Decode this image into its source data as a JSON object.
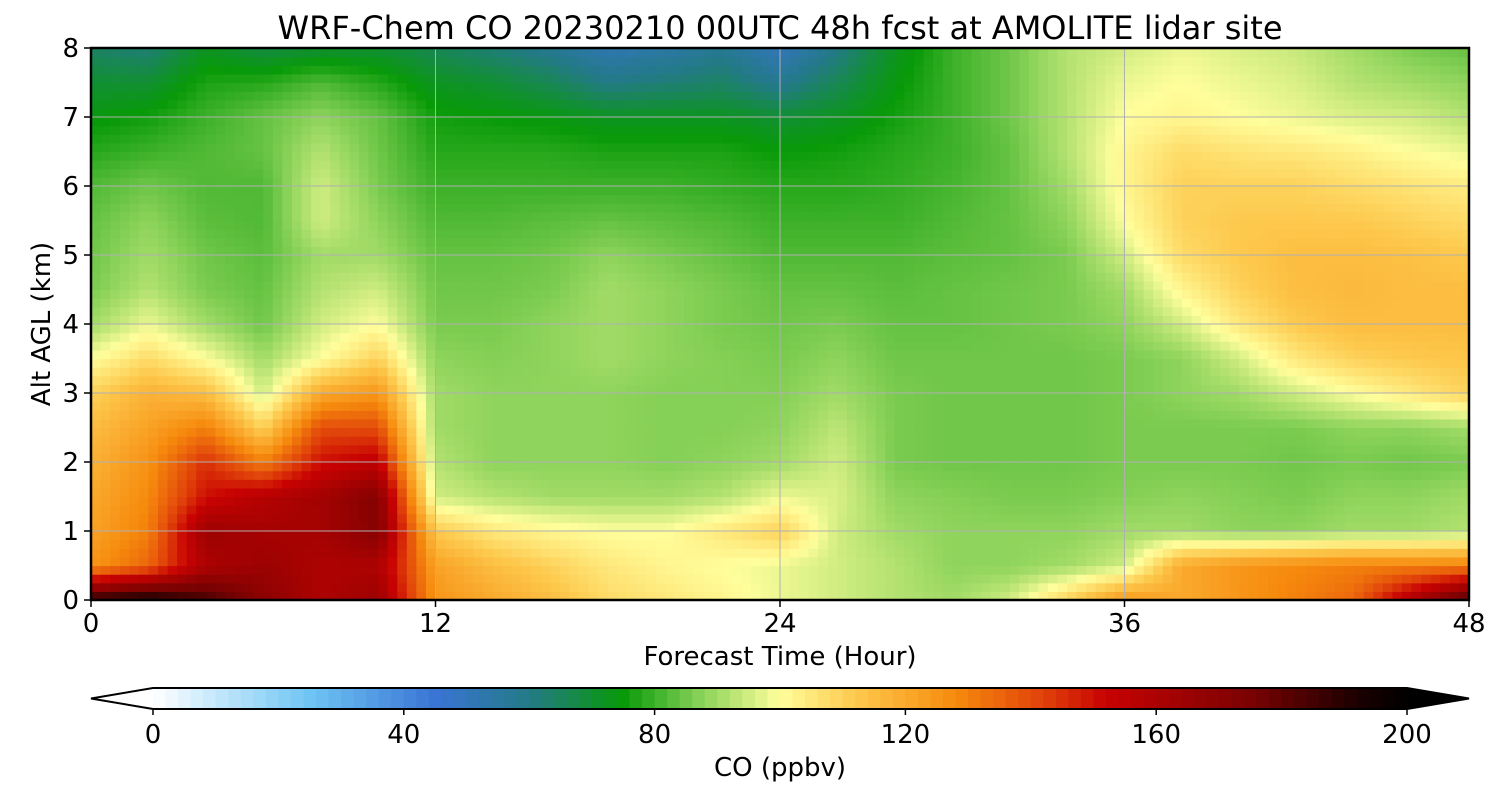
{
  "chart_data": {
    "type": "heatmap",
    "title": "WRF-Chem CO  20230210 00UTC 48h fcst at AMOLITE lidar site",
    "xlabel": "Forecast Time (Hour)",
    "ylabel": "Alt AGL (km)",
    "xlim": [
      0,
      48
    ],
    "ylim": [
      0,
      8
    ],
    "x_ticks": [
      "0",
      "12",
      "24",
      "36",
      "48"
    ],
    "y_ticks": [
      "0",
      "1",
      "2",
      "3",
      "4",
      "5",
      "6",
      "7",
      "8"
    ],
    "grid": true,
    "x": [
      0,
      2,
      4,
      6,
      8,
      10,
      12,
      14,
      16,
      18,
      20,
      22,
      24,
      26,
      28,
      30,
      32,
      34,
      36,
      38,
      40,
      42,
      44,
      46,
      48
    ],
    "y": [
      0,
      0.5,
      1,
      1.5,
      2,
      2.5,
      3,
      3.5,
      4,
      4.5,
      5,
      5.5,
      6,
      6.5,
      7,
      7.5,
      8
    ],
    "z": [
      [
        190,
        195,
        185,
        170,
        160,
        165,
        125,
        120,
        115,
        108,
        105,
        102,
        98,
        95,
        92,
        90,
        95,
        110,
        125,
        120,
        125,
        130,
        135,
        160,
        185
      ],
      [
        125,
        135,
        160,
        165,
        160,
        160,
        122,
        115,
        110,
        105,
        102,
        100,
        98,
        95,
        92,
        88,
        88,
        90,
        95,
        120,
        125,
        128,
        130,
        130,
        130
      ],
      [
        122,
        130,
        165,
        162,
        162,
        172,
        112,
        105,
        102,
        100,
        100,
        105,
        110,
        95,
        90,
        88,
        88,
        88,
        90,
        90,
        88,
        88,
        90,
        90,
        92
      ],
      [
        120,
        128,
        150,
        158,
        163,
        172,
        95,
        92,
        90,
        90,
        90,
        92,
        98,
        96,
        88,
        87,
        86,
        86,
        87,
        88,
        87,
        86,
        88,
        88,
        90
      ],
      [
        118,
        126,
        145,
        130,
        150,
        155,
        92,
        88,
        88,
        88,
        87,
        88,
        90,
        95,
        86,
        85,
        85,
        85,
        86,
        86,
        86,
        85,
        86,
        85,
        86
      ],
      [
        115,
        122,
        130,
        110,
        140,
        140,
        90,
        88,
        88,
        88,
        87,
        87,
        88,
        93,
        86,
        85,
        85,
        85,
        86,
        86,
        86,
        86,
        88,
        88,
        90
      ],
      [
        110,
        118,
        115,
        95,
        120,
        125,
        90,
        88,
        88,
        88,
        87,
        87,
        87,
        90,
        86,
        85,
        85,
        85,
        86,
        88,
        90,
        95,
        100,
        105,
        110
      ],
      [
        100,
        108,
        100,
        90,
        100,
        110,
        88,
        87,
        88,
        90,
        88,
        87,
        86,
        88,
        85,
        85,
        85,
        85,
        86,
        88,
        95,
        105,
        110,
        112,
        113
      ],
      [
        90,
        98,
        90,
        85,
        95,
        100,
        86,
        86,
        88,
        90,
        88,
        86,
        85,
        86,
        84,
        84,
        85,
        86,
        88,
        95,
        105,
        112,
        115,
        115,
        115
      ],
      [
        86,
        92,
        86,
        84,
        92,
        95,
        85,
        85,
        86,
        90,
        88,
        86,
        84,
        84,
        83,
        84,
        85,
        86,
        90,
        102,
        110,
        115,
        116,
        115,
        115
      ],
      [
        85,
        90,
        85,
        83,
        90,
        90,
        84,
        84,
        85,
        88,
        86,
        84,
        82,
        82,
        82,
        83,
        84,
        86,
        95,
        108,
        112,
        115,
        115,
        114,
        112
      ],
      [
        84,
        88,
        83,
        82,
        95,
        88,
        82,
        82,
        83,
        84,
        83,
        82,
        80,
        80,
        80,
        82,
        84,
        88,
        100,
        110,
        112,
        112,
        112,
        110,
        108
      ],
      [
        82,
        85,
        82,
        82,
        95,
        86,
        80,
        80,
        80,
        80,
        80,
        79,
        78,
        78,
        79,
        81,
        84,
        90,
        102,
        110,
        110,
        110,
        108,
        106,
        104
      ],
      [
        78,
        80,
        82,
        84,
        92,
        85,
        78,
        78,
        78,
        77,
        77,
        77,
        75,
        76,
        78,
        80,
        84,
        92,
        102,
        108,
        106,
        105,
        103,
        100,
        98
      ],
      [
        74,
        76,
        80,
        84,
        88,
        84,
        76,
        75,
        74,
        72,
        72,
        72,
        70,
        72,
        76,
        80,
        85,
        92,
        100,
        102,
        100,
        98,
        96,
        95,
        92
      ],
      [
        70,
        70,
        77,
        78,
        82,
        78,
        72,
        70,
        66,
        60,
        62,
        64,
        58,
        66,
        74,
        80,
        85,
        92,
        98,
        100,
        98,
        96,
        92,
        90,
        88
      ],
      [
        64,
        62,
        72,
        68,
        70,
        70,
        66,
        62,
        58,
        52,
        54,
        58,
        50,
        60,
        72,
        80,
        85,
        92,
        95,
        98,
        96,
        94,
        90,
        86,
        84
      ]
    ],
    "colorbar": {
      "label": "CO  (ppbv)",
      "ticks": [
        "0",
        "40",
        "80",
        "120",
        "160",
        "200"
      ],
      "min": 0,
      "max": 200,
      "extend": "both",
      "stops": [
        {
          "v": 0,
          "c": "#ffffff"
        },
        {
          "v": 25,
          "c": "#6ec5f4"
        },
        {
          "v": 45,
          "c": "#3a74d4"
        },
        {
          "v": 60,
          "c": "#237a86"
        },
        {
          "v": 75,
          "c": "#089a08"
        },
        {
          "v": 88,
          "c": "#8fd45c"
        },
        {
          "v": 100,
          "c": "#fffe9c"
        },
        {
          "v": 112,
          "c": "#fdc94d"
        },
        {
          "v": 128,
          "c": "#f68a0d"
        },
        {
          "v": 142,
          "c": "#e0410a"
        },
        {
          "v": 152,
          "c": "#c80202"
        },
        {
          "v": 175,
          "c": "#7a0202"
        },
        {
          "v": 192,
          "c": "#1c0000"
        },
        {
          "v": 200,
          "c": "#000000"
        }
      ],
      "under_color": "#ffffff",
      "over_color": "#000000"
    }
  }
}
